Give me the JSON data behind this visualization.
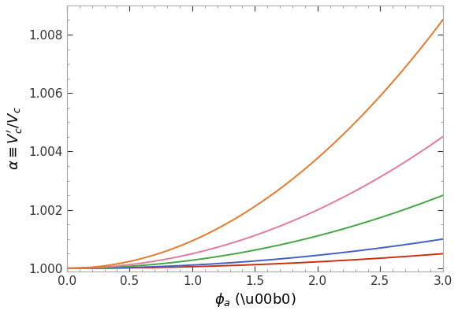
{
  "title": "",
  "xlabel": "$\\phi_a$ (\\u00b0)",
  "ylabel": "$\\alpha \\equiv V_c^{\\prime}/V_c$",
  "xlim": [
    0.0,
    3.0
  ],
  "ylim": [
    0.9999,
    1.009
  ],
  "yticks": [
    1.0,
    1.002,
    1.004,
    1.006,
    1.008
  ],
  "xticks": [
    0.0,
    0.5,
    1.0,
    1.5,
    2.0,
    2.5,
    3.0
  ],
  "curves": [
    {
      "n": 0.182,
      "color": "#c83010",
      "lw": 1.4
    },
    {
      "n": 0.365,
      "color": "#4060c8",
      "lw": 1.4
    },
    {
      "n": 0.91,
      "color": "#40a840",
      "lw": 1.4
    },
    {
      "n": 1.64,
      "color": "#e87898",
      "lw": 1.4
    },
    {
      "n": 3.09,
      "color": "#e87828",
      "lw": 1.4
    }
  ],
  "phi_max": 3.0,
  "phi_n": 600,
  "background": "#ffffff"
}
